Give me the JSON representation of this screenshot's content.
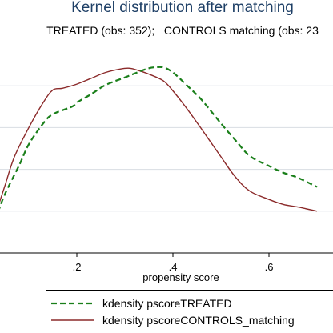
{
  "chart_data": {
    "type": "line",
    "title": "Kernel distribution after matching",
    "subtitle": "TREATED (obs: 352);   CONTROLS matching (obs: 23",
    "xlabel": "propensity score",
    "ylabel": "",
    "x_ticks": [
      0.2,
      0.4,
      0.6
    ],
    "x_tick_labels": [
      ".2",
      ".4",
      ".6"
    ],
    "xlim": [
      0.02,
      0.7
    ],
    "ylim": [
      0.0,
      2.5
    ],
    "y_grid": [
      0.5,
      1.0,
      1.5,
      2.0
    ],
    "grid": true,
    "legend_position": "bottom",
    "series": [
      {
        "name": "kdensity pscoreTREATED",
        "color": "#1a7f1a",
        "style": "dashed",
        "x": [
          0.02,
          0.03,
          0.05,
          0.08,
          0.1,
          0.13,
          0.15,
          0.19,
          0.2,
          0.23,
          0.26,
          0.3,
          0.33,
          0.35,
          0.36,
          0.38,
          0.4,
          0.43,
          0.46,
          0.5,
          0.53,
          0.56,
          0.6,
          0.63,
          0.66,
          0.7
        ],
        "y": [
          0.3,
          0.4,
          0.7,
          1.05,
          1.3,
          1.55,
          1.66,
          1.75,
          1.8,
          1.9,
          2.01,
          2.1,
          2.17,
          2.21,
          2.22,
          2.22,
          2.16,
          2.0,
          1.83,
          1.55,
          1.35,
          1.16,
          1.04,
          0.96,
          0.9,
          0.79
        ]
      },
      {
        "name": "kdensity pscoreCONTROLS_matching",
        "color": "#8b2a2a",
        "style": "solid",
        "x": [
          0.02,
          0.03,
          0.05,
          0.07,
          0.1,
          0.13,
          0.15,
          0.17,
          0.2,
          0.23,
          0.26,
          0.29,
          0.31,
          0.33,
          0.35,
          0.38,
          0.4,
          0.43,
          0.46,
          0.5,
          0.53,
          0.56,
          0.6,
          0.63,
          0.66,
          0.7
        ],
        "y": [
          0.27,
          0.45,
          0.8,
          1.15,
          1.5,
          1.8,
          1.95,
          1.97,
          2.02,
          2.09,
          2.16,
          2.2,
          2.21,
          2.18,
          2.14,
          2.06,
          1.94,
          1.72,
          1.48,
          1.15,
          0.91,
          0.74,
          0.64,
          0.58,
          0.55,
          0.5
        ]
      }
    ]
  }
}
